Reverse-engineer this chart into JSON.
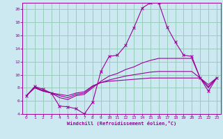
{
  "xlabel": "Windchill (Refroidissement éolien,°C)",
  "background_color": "#cce8f0",
  "grid_color": "#99ccbb",
  "line_color": "#990099",
  "xlim": [
    -0.5,
    23.5
  ],
  "ylim": [
    4,
    21
  ],
  "xticks": [
    0,
    1,
    2,
    3,
    4,
    5,
    6,
    7,
    8,
    9,
    10,
    11,
    12,
    13,
    14,
    15,
    16,
    17,
    18,
    19,
    20,
    21,
    22,
    23
  ],
  "yticks": [
    4,
    6,
    8,
    10,
    12,
    14,
    16,
    18,
    20
  ],
  "series": [
    {
      "x": [
        0,
        1,
        2,
        3,
        4,
        5,
        6,
        7,
        8,
        9,
        10,
        11,
        12,
        13,
        14,
        15,
        16,
        17,
        18,
        19,
        20,
        21,
        22,
        23
      ],
      "y": [
        6.8,
        8.2,
        7.8,
        7.2,
        5.2,
        5.1,
        4.8,
        4.0,
        5.8,
        10.5,
        12.8,
        13.0,
        14.5,
        17.2,
        20.2,
        21.0,
        21.0,
        17.3,
        15.0,
        13.0,
        12.8,
        9.5,
        7.5,
        9.5
      ],
      "marker": true
    },
    {
      "x": [
        0,
        1,
        2,
        3,
        4,
        5,
        6,
        7,
        8,
        9,
        10,
        11,
        12,
        13,
        14,
        15,
        16,
        17,
        18,
        19,
        20,
        21,
        22,
        23
      ],
      "y": [
        6.8,
        8.1,
        7.6,
        7.2,
        6.5,
        6.2,
        6.8,
        7.0,
        8.0,
        9.0,
        9.8,
        10.2,
        10.8,
        11.2,
        11.8,
        12.2,
        12.5,
        12.5,
        12.5,
        12.5,
        12.5,
        9.5,
        8.0,
        9.5
      ],
      "marker": false
    },
    {
      "x": [
        0,
        1,
        2,
        3,
        4,
        5,
        6,
        7,
        8,
        9,
        10,
        11,
        12,
        13,
        14,
        15,
        16,
        17,
        18,
        19,
        20,
        21,
        22,
        23
      ],
      "y": [
        6.8,
        8.0,
        7.5,
        7.2,
        6.8,
        6.5,
        7.0,
        7.2,
        8.2,
        8.8,
        9.2,
        9.5,
        9.8,
        10.0,
        10.2,
        10.4,
        10.5,
        10.5,
        10.5,
        10.5,
        10.5,
        9.5,
        8.2,
        9.5
      ],
      "marker": false
    },
    {
      "x": [
        0,
        1,
        2,
        3,
        4,
        5,
        6,
        7,
        8,
        9,
        10,
        11,
        12,
        13,
        14,
        15,
        16,
        17,
        18,
        19,
        20,
        21,
        22,
        23
      ],
      "y": [
        6.8,
        8.0,
        7.5,
        7.2,
        7.0,
        6.8,
        7.2,
        7.4,
        8.3,
        8.8,
        9.0,
        9.1,
        9.2,
        9.3,
        9.4,
        9.5,
        9.5,
        9.5,
        9.5,
        9.5,
        9.5,
        9.5,
        8.5,
        9.5
      ],
      "marker": false
    }
  ]
}
